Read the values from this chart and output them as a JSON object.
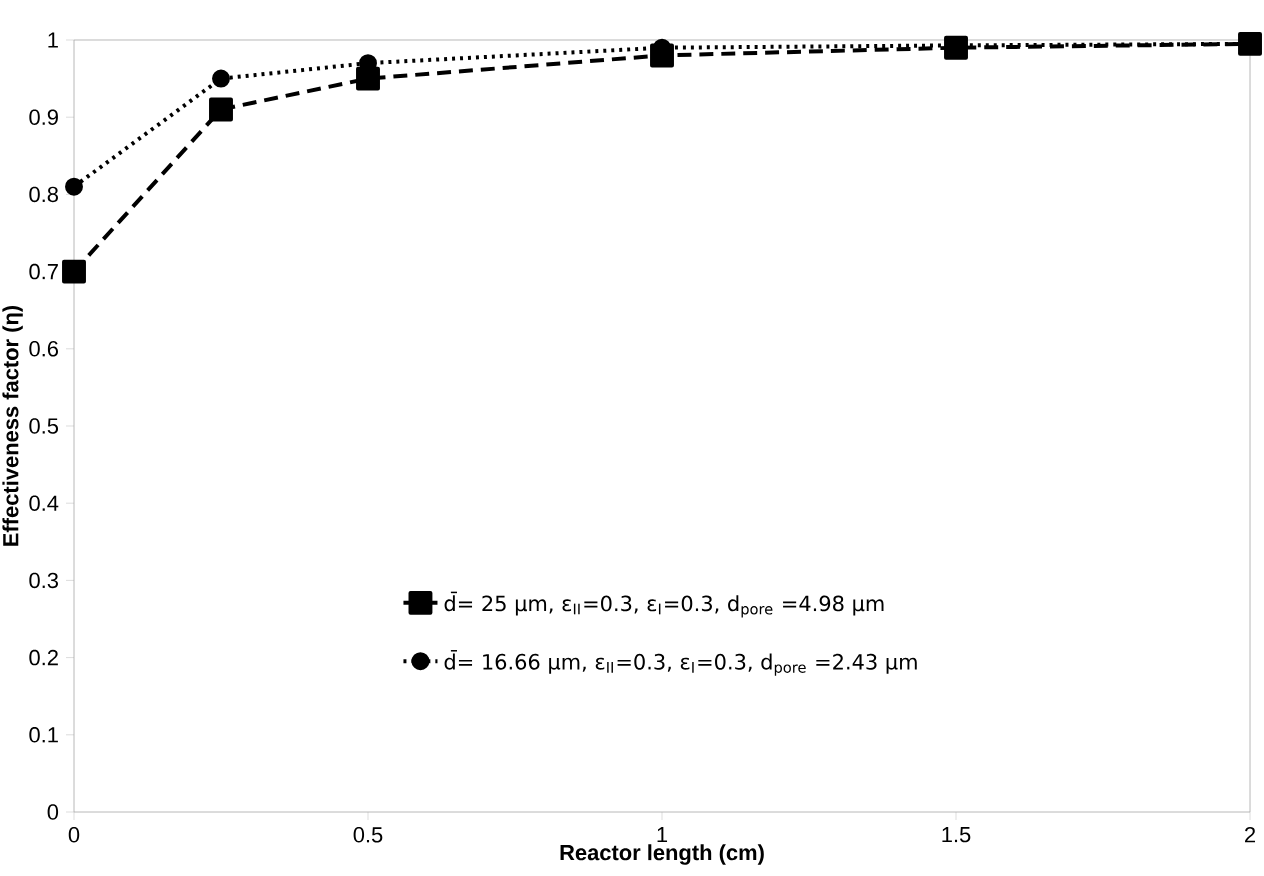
{
  "chart_data": {
    "type": "line",
    "xlabel": "**Reactor length (cm)**",
    "ylabel": "**Effectiveness factor (η)**",
    "x": [
      0,
      0.25,
      0.5,
      1,
      1.5,
      2
    ],
    "xlim": [
      0,
      2
    ],
    "xticks": [
      0,
      0.5,
      1,
      1.5,
      2
    ],
    "ylim": [
      0,
      1
    ],
    "yticks": [
      0,
      0.1,
      0.2,
      0.3,
      0.4,
      0.5,
      0.6,
      0.7,
      0.8,
      0.9,
      1
    ],
    "grid": false,
    "legend": "bottom",
    "series": [
      {
        "name": "d̄= 25 µm, ε$_{II}$=0.3, ε$_{I}$=0.3, d$_{pore}$ =4.98 µm",
        "color": "#000000",
        "marker": "square",
        "line_style": "dashed",
        "values": [
          0.7,
          0.91,
          0.95,
          0.98,
          0.99,
          0.995
        ]
      },
      {
        "name": "d̄= 16.66 µm, ε$_{II}$=0.3, ε$_{I}$=0.3, d$_{pore}$ =2.43 µm",
        "color": "#000000",
        "marker": "circle",
        "line_style": "dotted",
        "values": [
          0.81,
          0.95,
          0.97,
          0.99,
          0.993,
          0.995
        ]
      }
    ]
  }
}
